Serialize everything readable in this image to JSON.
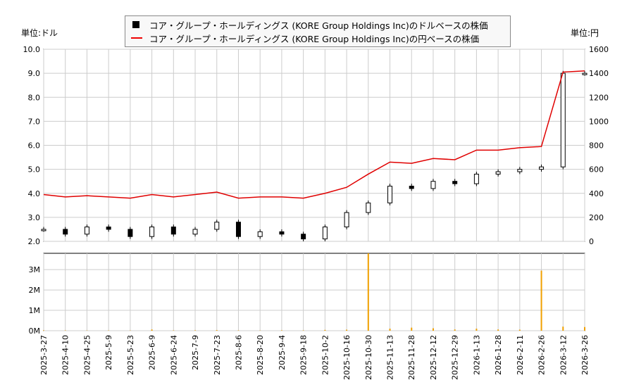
{
  "legend": {
    "usd": "コア・グループ・ホールディングス (KORE Group Holdings Inc)のドルベースの株価",
    "jpy": "コア・グループ・ホールディングス (KORE Group Holdings Inc)の円ベースの株価"
  },
  "units": {
    "left": "単位:ドル",
    "right": "単位:円"
  },
  "colors": {
    "usd": "#000000",
    "jpy": "#e00000",
    "volume": "#f0a000",
    "grid": "#cccccc"
  },
  "chart_data": {
    "type": "candlestick+line+bar",
    "x_ticks": [
      "2025-3-27",
      "2025-4-10",
      "2025-4-25",
      "2025-5-9",
      "2025-5-23",
      "2025-6-9",
      "2025-6-24",
      "2025-7-9",
      "2025-7-23",
      "2025-8-6",
      "2025-8-20",
      "2025-9-4",
      "2025-9-18",
      "2025-10-2",
      "2025-10-16",
      "2025-10-30",
      "2025-11-13",
      "2025-11-28",
      "2025-12-12",
      "2025-12-29",
      "2026-1-13",
      "2026-1-28",
      "2026-2-11",
      "2026-2-26",
      "2026-3-12",
      "2026-3-26"
    ],
    "usd_axis": {
      "ylim": [
        2,
        10
      ],
      "ticks": [
        "2.0",
        "3.0",
        "4.0",
        "5.0",
        "6.0",
        "7.0",
        "8.0",
        "9.0",
        "10.0"
      ]
    },
    "jpy_axis": {
      "ylim": [
        0,
        1600
      ],
      "ticks": [
        "0",
        "200",
        "400",
        "600",
        "800",
        "1000",
        "1200",
        "1400",
        "1600"
      ]
    },
    "volume_axis": {
      "ylim": [
        0,
        3800000
      ],
      "ticks": [
        "0M",
        "1M",
        "2M",
        "3M"
      ]
    },
    "usd_close": [
      2.5,
      2.3,
      2.6,
      2.5,
      2.2,
      2.6,
      2.3,
      2.5,
      2.8,
      2.2,
      2.4,
      2.3,
      2.1,
      2.6,
      3.2,
      3.6,
      4.3,
      4.2,
      4.5,
      4.4,
      4.8,
      4.9,
      5.0,
      5.1,
      9.0,
      9.0
    ],
    "jpy_close": [
      390,
      370,
      380,
      370,
      360,
      390,
      370,
      390,
      410,
      360,
      370,
      370,
      360,
      400,
      450,
      560,
      660,
      650,
      690,
      680,
      760,
      760,
      780,
      790,
      1410,
      1420
    ],
    "volume": [
      20000,
      15000,
      10000,
      12000,
      10000,
      60000,
      15000,
      20000,
      30000,
      15000,
      10000,
      20000,
      15000,
      40000,
      50000,
      3800000,
      100000,
      150000,
      120000,
      60000,
      100000,
      60000,
      50000,
      2950000,
      200000,
      180000
    ]
  }
}
